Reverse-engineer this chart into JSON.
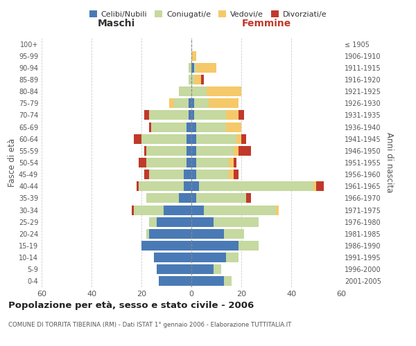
{
  "age_groups": [
    "0-4",
    "5-9",
    "10-14",
    "15-19",
    "20-24",
    "25-29",
    "30-34",
    "35-39",
    "40-44",
    "45-49",
    "50-54",
    "55-59",
    "60-64",
    "65-69",
    "70-74",
    "75-79",
    "80-84",
    "85-89",
    "90-94",
    "95-99",
    "100+"
  ],
  "birth_years": [
    "2001-2005",
    "1996-2000",
    "1991-1995",
    "1986-1990",
    "1981-1985",
    "1976-1980",
    "1971-1975",
    "1966-1970",
    "1961-1965",
    "1956-1960",
    "1951-1955",
    "1946-1950",
    "1941-1945",
    "1936-1940",
    "1931-1935",
    "1926-1930",
    "1921-1925",
    "1916-1920",
    "1911-1915",
    "1906-1910",
    "≤ 1905"
  ],
  "males": {
    "celibi": [
      13,
      14,
      15,
      20,
      17,
      14,
      11,
      5,
      3,
      3,
      2,
      2,
      2,
      2,
      1,
      1,
      0,
      0,
      0,
      0,
      0
    ],
    "coniugati": [
      0,
      0,
      0,
      0,
      1,
      3,
      12,
      13,
      18,
      14,
      16,
      16,
      18,
      14,
      16,
      6,
      5,
      1,
      1,
      0,
      0
    ],
    "vedovi": [
      0,
      0,
      0,
      0,
      0,
      0,
      0,
      0,
      0,
      0,
      0,
      0,
      0,
      0,
      0,
      2,
      0,
      0,
      0,
      0,
      0
    ],
    "divorziati": [
      0,
      0,
      0,
      0,
      0,
      0,
      1,
      0,
      1,
      2,
      3,
      1,
      3,
      1,
      2,
      0,
      0,
      0,
      0,
      0,
      0
    ]
  },
  "females": {
    "nubili": [
      13,
      9,
      14,
      19,
      13,
      9,
      5,
      2,
      3,
      2,
      2,
      2,
      2,
      2,
      1,
      1,
      0,
      0,
      1,
      0,
      0
    ],
    "coniugate": [
      3,
      3,
      5,
      8,
      8,
      18,
      29,
      20,
      46,
      13,
      13,
      15,
      16,
      12,
      13,
      6,
      6,
      1,
      1,
      0,
      0
    ],
    "vedove": [
      0,
      0,
      0,
      0,
      0,
      0,
      1,
      0,
      1,
      2,
      2,
      2,
      2,
      6,
      5,
      12,
      14,
      3,
      8,
      2,
      0
    ],
    "divorziate": [
      0,
      0,
      0,
      0,
      0,
      0,
      0,
      2,
      3,
      2,
      1,
      5,
      2,
      0,
      2,
      0,
      0,
      1,
      0,
      0,
      0
    ]
  },
  "colors": {
    "celibi_nubili": "#4a7ab5",
    "coniugati": "#c5d9a0",
    "vedovi": "#f5c96a",
    "divorziati": "#c0392b"
  },
  "title": "Popolazione per età, sesso e stato civile - 2006",
  "subtitle": "COMUNE DI TORRITA TIBERINA (RM) - Dati ISTAT 1° gennaio 2006 - Elaborazione TUTTITALIA.IT",
  "xlabel_left": "Maschi",
  "xlabel_right": "Femmine",
  "ylabel_left": "Fasce di età",
  "ylabel_right": "Anni di nascita",
  "xlim": 60,
  "background_color": "#ffffff",
  "grid_color": "#cccccc"
}
